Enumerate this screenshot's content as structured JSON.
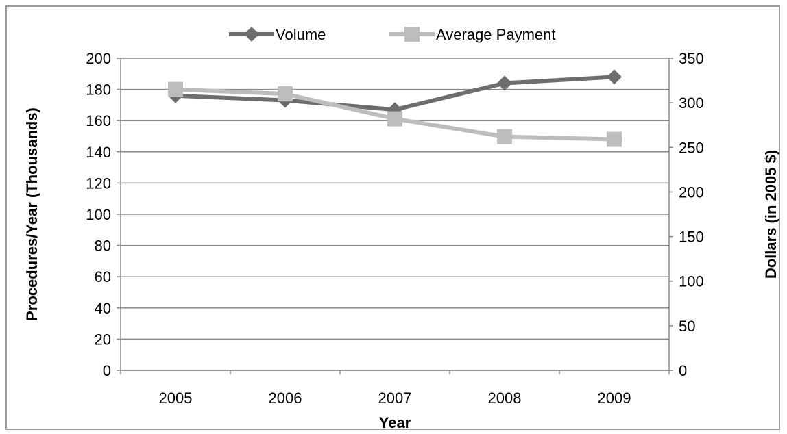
{
  "chart_data": {
    "type": "line",
    "title": "",
    "xlabel": "Year",
    "ylabel_left": "Procedures/Year (Thousands)",
    "ylabel_right": "Dollars (in 2005 $)",
    "categories": [
      "2005",
      "2006",
      "2007",
      "2008",
      "2009"
    ],
    "ylim_left": [
      0,
      200
    ],
    "yticks_left": [
      "0",
      "20",
      "40",
      "60",
      "80",
      "100",
      "120",
      "140",
      "160",
      "180",
      "200"
    ],
    "ylim_right": [
      0,
      350
    ],
    "yticks_right": [
      "0",
      "50",
      "100",
      "150",
      "200",
      "250",
      "300",
      "350"
    ],
    "grid": true,
    "legend_position": "top",
    "series": [
      {
        "name": "Volume",
        "axis": "left",
        "marker": "diamond",
        "color": "#6d6d6d",
        "values": [
          176,
          173,
          167,
          184,
          188
        ]
      },
      {
        "name": "Average Payment",
        "axis": "right",
        "marker": "square",
        "color": "#bdbdbd",
        "values": [
          315,
          310,
          282,
          262,
          259
        ]
      }
    ]
  }
}
